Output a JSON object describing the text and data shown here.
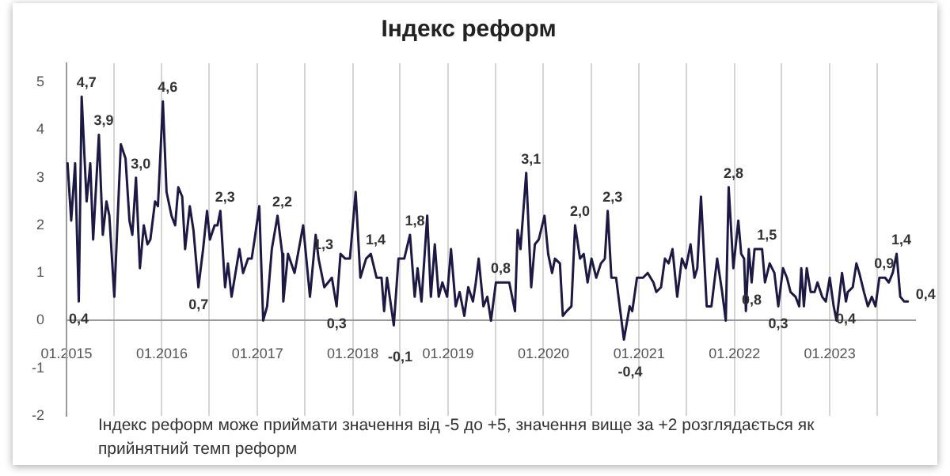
{
  "chart_data": {
    "type": "line",
    "title": "Індекс реформ",
    "x": [
      "2015-01-05",
      "2015-01-19",
      "2015-02-03",
      "2015-02-17",
      "2015-02-28",
      "2015-03-19",
      "2015-04-02",
      "2015-04-13",
      "2015-05-05",
      "2015-05-20",
      "2015-06-03",
      "2015-06-14",
      "2015-07-03",
      "2015-07-28",
      "2015-08-15",
      "2015-08-30",
      "2015-09-10",
      "2015-09-24",
      "2015-10-09",
      "2015-10-24",
      "2015-11-07",
      "2015-11-18",
      "2015-12-06",
      "2015-12-17",
      "2016-01-05",
      "2016-01-19",
      "2016-02-07",
      "2016-02-21",
      "2016-03-04",
      "2016-03-19",
      "2016-03-30",
      "2016-04-17",
      "2016-05-01",
      "2016-05-20",
      "2016-06-07",
      "2016-06-22",
      "2016-07-03",
      "2016-07-21",
      "2016-08-01",
      "2016-08-12",
      "2016-08-30",
      "2016-09-10",
      "2016-09-24",
      "2016-10-24",
      "2016-11-07",
      "2016-11-26",
      "2016-12-10",
      "2016-12-21",
      "2017-01-08",
      "2017-01-23",
      "2017-02-07",
      "2017-02-25",
      "2017-03-19",
      "2017-04-06",
      "2017-04-10",
      "2017-04-28",
      "2017-05-23",
      "2017-06-25",
      "2017-07-21",
      "2017-08-12",
      "2017-08-23",
      "2017-09-14",
      "2017-10-13",
      "2017-10-31",
      "2017-11-15",
      "2017-12-03",
      "2017-12-21",
      "2018-01-12",
      "2018-01-30",
      "2018-02-21",
      "2018-03-11",
      "2018-04-02",
      "2018-04-21",
      "2018-05-01",
      "2018-05-12",
      "2018-06-07",
      "2018-06-25",
      "2018-07-17",
      "2018-08-08",
      "2018-08-26",
      "2018-09-06",
      "2018-09-21",
      "2018-10-13",
      "2018-10-27",
      "2018-11-11",
      "2018-11-26",
      "2018-12-10",
      "2018-12-28",
      "2019-01-12",
      "2019-01-30",
      "2019-02-14",
      "2019-03-04",
      "2019-03-19",
      "2019-04-06",
      "2019-04-17",
      "2019-04-28",
      "2019-05-16",
      "2019-05-31",
      "2019-06-14",
      "2019-07-03",
      "2019-07-24",
      "2019-08-08",
      "2019-08-23",
      "2019-09-14",
      "2019-09-24",
      "2019-10-05",
      "2019-10-27",
      "2019-11-15",
      "2019-11-29",
      "2019-12-14",
      "2020-01-05",
      "2020-01-19",
      "2020-02-03",
      "2020-02-14",
      "2020-03-04",
      "2020-03-15",
      "2020-03-30",
      "2020-04-17",
      "2020-05-01",
      "2020-05-20",
      "2020-06-03",
      "2020-06-18",
      "2020-07-03",
      "2020-07-21",
      "2020-08-08",
      "2020-08-23",
      "2020-09-03",
      "2020-09-17",
      "2020-10-05",
      "2020-11-04",
      "2020-11-26",
      "2020-12-06",
      "2020-12-24",
      "2021-01-16",
      "2021-02-03",
      "2021-02-25",
      "2021-03-08",
      "2021-03-26",
      "2021-04-10",
      "2021-04-24",
      "2021-05-09",
      "2021-05-27",
      "2021-06-14",
      "2021-06-29",
      "2021-07-17",
      "2021-08-01",
      "2021-08-12",
      "2021-08-26",
      "2021-09-17",
      "2021-10-05",
      "2021-10-27",
      "2021-11-15",
      "2021-11-29",
      "2021-12-10",
      "2021-12-28",
      "2022-01-16",
      "2022-01-27",
      "2022-02-07",
      "2022-02-14",
      "2022-02-25",
      "2022-03-08",
      "2022-03-19",
      "2022-04-02",
      "2022-04-17",
      "2022-04-28",
      "2022-05-16",
      "2022-06-03",
      "2022-06-18",
      "2022-07-06",
      "2022-07-21",
      "2022-08-04",
      "2022-08-23",
      "2022-09-06",
      "2022-09-14",
      "2022-09-24",
      "2022-10-05",
      "2022-10-20",
      "2022-11-04",
      "2022-11-15",
      "2022-12-03",
      "2022-12-17",
      "2023-01-01",
      "2023-01-16",
      "2023-01-27",
      "2023-02-17",
      "2023-03-04",
      "2023-03-11",
      "2023-03-30",
      "2023-04-13",
      "2023-04-24",
      "2023-05-12",
      "2023-05-27",
      "2023-06-11",
      "2023-06-25",
      "2023-07-10",
      "2023-08-01",
      "2023-08-15",
      "2023-08-30",
      "2023-09-14",
      "2023-09-28",
      "2023-10-13",
      "2023-10-27"
    ],
    "series": [
      {
        "color": "#1c1a44",
        "values": [
          3.3,
          2.1,
          3.3,
          0.4,
          4.7,
          2.5,
          3.3,
          1.7,
          3.9,
          1.8,
          2.5,
          2.2,
          0.5,
          3.7,
          3.4,
          2.1,
          1.8,
          3.0,
          1.1,
          2.0,
          1.6,
          1.7,
          2.5,
          2.4,
          4.6,
          2.7,
          2.2,
          2.0,
          2.8,
          2.6,
          1.5,
          2.4,
          1.9,
          0.7,
          1.5,
          2.3,
          1.7,
          2.0,
          2.0,
          2.3,
          0.7,
          1.2,
          0.5,
          1.5,
          1.0,
          1.3,
          1.3,
          1.7,
          2.4,
          0.0,
          0.3,
          1.5,
          2.2,
          1.4,
          0.4,
          1.4,
          1.0,
          2.0,
          0.5,
          1.8,
          1.3,
          0.7,
          0.9,
          0.3,
          1.4,
          1.3,
          1.3,
          2.7,
          0.9,
          1.3,
          1.4,
          0.9,
          0.9,
          0.2,
          0.9,
          -0.1,
          1.3,
          1.3,
          1.8,
          0.5,
          1.1,
          0.4,
          2.2,
          0.5,
          1.6,
          0.5,
          0.8,
          0.5,
          1.5,
          0.3,
          0.6,
          0.1,
          0.7,
          0.4,
          0.8,
          1.3,
          0.3,
          0.5,
          0.0,
          0.8,
          0.8,
          0.8,
          0.8,
          0.2,
          1.9,
          1.5,
          3.1,
          0.7,
          1.6,
          1.7,
          2.2,
          1.4,
          1.0,
          1.3,
          1.2,
          0.1,
          0.2,
          0.3,
          2.0,
          1.3,
          1.4,
          0.8,
          1.3,
          0.9,
          1.2,
          1.3,
          2.3,
          0.9,
          0.9,
          -0.4,
          0.3,
          0.2,
          0.9,
          0.9,
          1.0,
          0.8,
          0.6,
          0.7,
          1.3,
          1.2,
          1.5,
          0.5,
          1.3,
          1.1,
          1.6,
          0.9,
          1.1,
          2.6,
          0.3,
          0.3,
          1.3,
          0.6,
          0.0,
          2.8,
          1.1,
          2.1,
          1.4,
          1.3,
          0.2,
          1.5,
          0.8,
          1.5,
          1.5,
          1.5,
          0.8,
          1.2,
          1.0,
          0.3,
          1.1,
          0.9,
          0.6,
          0.5,
          0.3,
          1.1,
          0.3,
          1.1,
          0.6,
          0.6,
          0.8,
          0.5,
          0.4,
          0.9,
          0.3,
          0.0,
          1.0,
          0.4,
          0.6,
          0.7,
          1.2,
          1.0,
          0.6,
          0.3,
          0.5,
          0.3,
          0.9,
          0.9,
          0.8,
          1.0,
          1.4,
          0.5,
          0.4,
          0.4
        ]
      }
    ],
    "xlim": [
      "2015-01-01",
      "2023-11-24"
    ],
    "xticks": [
      {
        "value": "2015-01-01",
        "label": "01.2015"
      },
      {
        "value": "2015-07-01",
        "label": null
      },
      {
        "value": "2016-01-01",
        "label": "01.2016"
      },
      {
        "value": "2016-07-01",
        "label": null
      },
      {
        "value": "2017-01-01",
        "label": "01.2017"
      },
      {
        "value": "2017-07-01",
        "label": null
      },
      {
        "value": "2018-01-01",
        "label": "01.2018"
      },
      {
        "value": "2018-07-01",
        "label": null
      },
      {
        "value": "2019-01-01",
        "label": "01.2019"
      },
      {
        "value": "2019-07-01",
        "label": null
      },
      {
        "value": "2020-01-01",
        "label": "01.2020"
      },
      {
        "value": "2020-07-01",
        "label": null
      },
      {
        "value": "2021-01-01",
        "label": "01.2021"
      },
      {
        "value": "2021-07-01",
        "label": null
      },
      {
        "value": "2022-01-01",
        "label": "01.2022"
      },
      {
        "value": "2022-07-01",
        "label": null
      },
      {
        "value": "2023-01-01",
        "label": "01.2023"
      },
      {
        "value": "2023-07-01",
        "label": null
      }
    ],
    "ylim": [
      -2,
      5.4
    ],
    "yticks": [
      -2,
      -1,
      0,
      1,
      2,
      3,
      4,
      5
    ],
    "grid": "x",
    "legend": false,
    "marker": "none",
    "line_style": "solid",
    "annotations": [
      {
        "text": "4,7",
        "x": "2015-02-28",
        "y": 4.7
      },
      {
        "text": "3,9",
        "x": "2015-05-05",
        "y": 3.9
      },
      {
        "text": "0,4",
        "x": "2015-02-17",
        "y": 0.4
      },
      {
        "text": "3,0",
        "x": "2015-09-24",
        "y": 3.0
      },
      {
        "text": "4,6",
        "x": "2016-01-05",
        "y": 4.6
      },
      {
        "text": "0,7",
        "x": "2016-05-20",
        "y": 0.7
      },
      {
        "text": "2,3",
        "x": "2016-08-12",
        "y": 2.3
      },
      {
        "text": "2,2",
        "x": "2017-03-19",
        "y": 2.2
      },
      {
        "text": "1,3",
        "x": "2017-08-23",
        "y": 1.3
      },
      {
        "text": "0,3",
        "x": "2017-10-31",
        "y": 0.3
      },
      {
        "text": "1,4",
        "x": "2018-03-11",
        "y": 1.4
      },
      {
        "text": "-0,1",
        "x": "2018-06-07",
        "y": -0.1
      },
      {
        "text": "1,8",
        "x": "2018-08-08",
        "y": 1.8
      },
      {
        "text": "0,8",
        "x": "2019-07-03",
        "y": 0.8
      },
      {
        "text": "3,1",
        "x": "2019-10-27",
        "y": 3.1
      },
      {
        "text": "2,0",
        "x": "2020-05-01",
        "y": 2.0
      },
      {
        "text": "2,3",
        "x": "2020-09-03",
        "y": 2.3
      },
      {
        "text": "-0,4",
        "x": "2020-11-04",
        "y": -0.4
      },
      {
        "text": "2,8",
        "x": "2021-12-10",
        "y": 2.8
      },
      {
        "text": "0,8",
        "x": "2022-03-08",
        "y": 0.8
      },
      {
        "text": "1,5",
        "x": "2022-04-17",
        "y": 1.5
      },
      {
        "text": "0,3",
        "x": "2022-06-18",
        "y": 0.3
      },
      {
        "text": "0,4",
        "x": "2023-03-04",
        "y": 0.4
      },
      {
        "text": "0,9",
        "x": "2023-07-10",
        "y": 0.9
      },
      {
        "text": "1,4",
        "x": "2023-09-14",
        "y": 1.4
      },
      {
        "text": "0,4",
        "x": "2023-10-27",
        "y": 0.4
      },
      "Індекс реформ може приймати значення від -5 до +5, значення вище за +2 розглядається як прийнятний темп реформ"
    ]
  }
}
